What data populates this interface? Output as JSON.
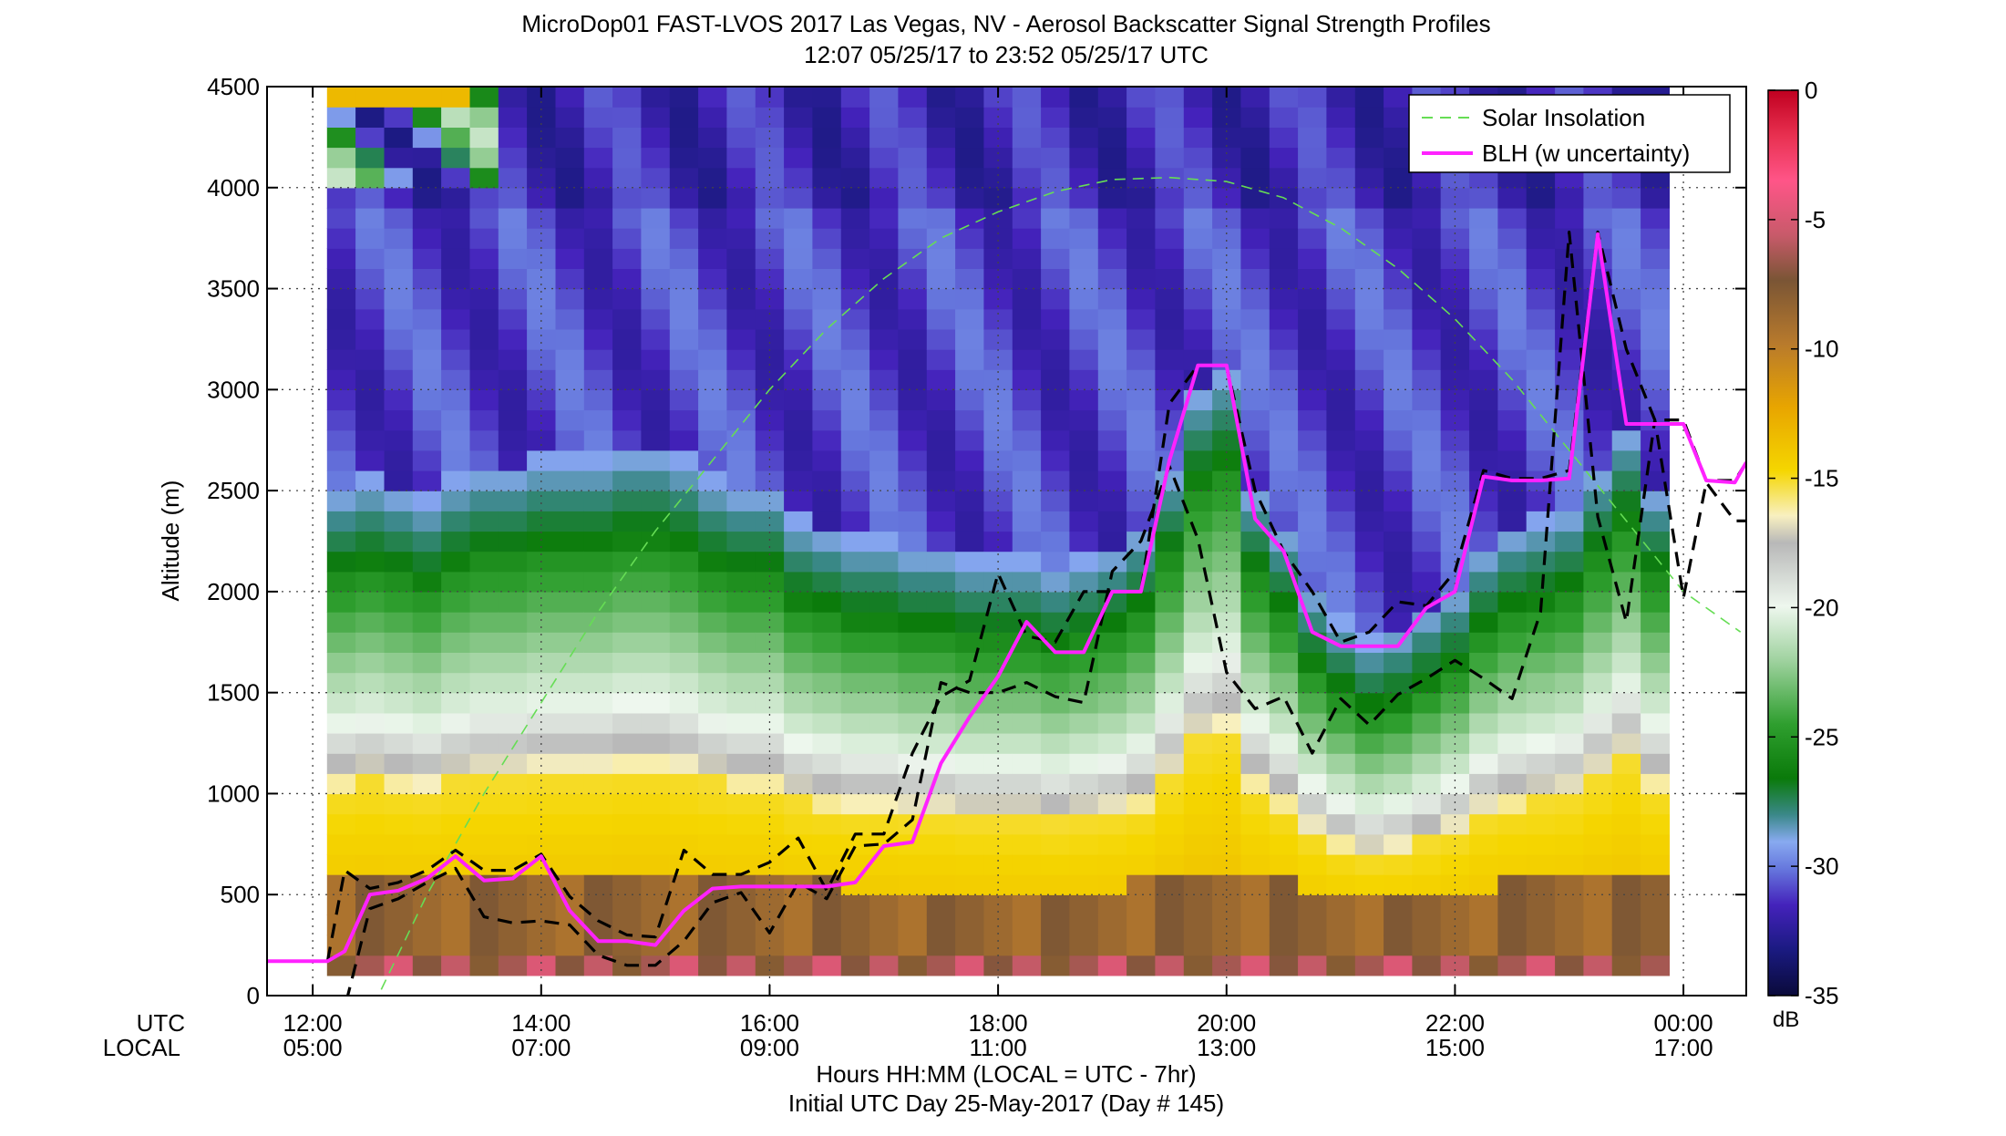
{
  "chart_data": {
    "type": "heatmap",
    "title": "MicroDop01 FAST-LVOS 2017 Las Vegas, NV - Aerosol Backscatter Signal Strength Profiles",
    "subtitle": "12:07 05/25/17 to 23:52 05/25/17  UTC",
    "ylabel": "Altitude (m)",
    "xlabel": "Hours HH:MM  (LOCAL = UTC - 7hr)",
    "footer": "Initial UTC Day 25-May-2017 (Day # 145)",
    "x_row_labels": [
      "UTC",
      "LOCAL"
    ],
    "xlim": [
      11.6,
      24.55
    ],
    "ylim": [
      0,
      4500
    ],
    "grid": true,
    "x_ticks": [
      {
        "value": 12,
        "utc": "12:00",
        "local": "05:00"
      },
      {
        "value": 14,
        "utc": "14:00",
        "local": "07:00"
      },
      {
        "value": 16,
        "utc": "16:00",
        "local": "09:00"
      },
      {
        "value": 18,
        "utc": "18:00",
        "local": "11:00"
      },
      {
        "value": 20,
        "utc": "20:00",
        "local": "13:00"
      },
      {
        "value": 22,
        "utc": "22:00",
        "local": "15:00"
      },
      {
        "value": 24,
        "utc": "00:00",
        "local": "17:00"
      }
    ],
    "y_ticks": [
      0,
      500,
      1000,
      1500,
      2000,
      2500,
      3000,
      3500,
      4000,
      4500
    ],
    "colorbar": {
      "label": "dB",
      "range": [
        -35,
        0
      ],
      "ticks": [
        "0",
        "-5",
        "-10",
        "-15",
        "-20",
        "-25",
        "-30",
        "-35"
      ],
      "tick_values": [
        0,
        -5,
        -10,
        -15,
        -20,
        -25,
        -30,
        -35
      ]
    },
    "legend": {
      "position": "top-right",
      "entries": [
        {
          "label": "Solar Insolation",
          "color": "#66dd55",
          "style": "dashed"
        },
        {
          "label": "BLH (w uncertainty)",
          "color": "#ff22ff",
          "style": "solid"
        }
      ]
    },
    "heatmap_columns": {
      "x_start": 12.13,
      "x_end": 24.0,
      "bin_hours": 0.25,
      "columns": [
        {
          "x": 12.25,
          "top_db": -31,
          "bl_top": 2300
        },
        {
          "x": 12.5,
          "top_db": -31,
          "bl_top": 2350
        },
        {
          "x": 12.75,
          "top_db": -31,
          "bl_top": 2300
        },
        {
          "x": 13.0,
          "top_db": -31,
          "bl_top": 2250
        },
        {
          "x": 13.25,
          "top_db": -31,
          "bl_top": 2350
        },
        {
          "x": 13.5,
          "top_db": -31,
          "bl_top": 2400
        },
        {
          "x": 13.75,
          "top_db": -31,
          "bl_top": 2400
        },
        {
          "x": 14.0,
          "top_db": -31,
          "bl_top": 2450
        },
        {
          "x": 14.25,
          "top_db": -31,
          "bl_top": 2450
        },
        {
          "x": 14.5,
          "top_db": -31,
          "bl_top": 2450
        },
        {
          "x": 14.75,
          "top_db": -31,
          "bl_top": 2500
        },
        {
          "x": 15.0,
          "top_db": -31,
          "bl_top": 2500
        },
        {
          "x": 15.25,
          "top_db": -31,
          "bl_top": 2450
        },
        {
          "x": 15.5,
          "top_db": -31,
          "bl_top": 2350
        },
        {
          "x": 15.75,
          "top_db": -31,
          "bl_top": 2300
        },
        {
          "x": 16.0,
          "top_db": -31,
          "bl_top": 2300
        },
        {
          "x": 16.25,
          "top_db": -31,
          "bl_top": 2150
        },
        {
          "x": 16.5,
          "top_db": -31,
          "bl_top": 2100
        },
        {
          "x": 16.75,
          "top_db": -31,
          "bl_top": 2050
        },
        {
          "x": 17.0,
          "top_db": -31,
          "bl_top": 2050
        },
        {
          "x": 17.25,
          "top_db": -31,
          "bl_top": 2000
        },
        {
          "x": 17.5,
          "top_db": -31,
          "bl_top": 2000
        },
        {
          "x": 17.75,
          "top_db": -31,
          "bl_top": 1950
        },
        {
          "x": 18.0,
          "top_db": -31,
          "bl_top": 1950
        },
        {
          "x": 18.25,
          "top_db": -31,
          "bl_top": 1950
        },
        {
          "x": 18.5,
          "top_db": -31,
          "bl_top": 1900
        },
        {
          "x": 18.75,
          "top_db": -31,
          "bl_top": 1950
        },
        {
          "x": 19.0,
          "top_db": -31,
          "bl_top": 2000
        },
        {
          "x": 19.25,
          "top_db": -31,
          "bl_top": 2100
        },
        {
          "x": 19.5,
          "top_db": -31,
          "bl_top": 2400
        },
        {
          "x": 19.75,
          "top_db": -31,
          "bl_top": 2800
        },
        {
          "x": 20.0,
          "top_db": -31,
          "bl_top": 2900
        },
        {
          "x": 20.25,
          "top_db": -31,
          "bl_top": 2300
        },
        {
          "x": 20.5,
          "top_db": -31,
          "bl_top": 2100
        },
        {
          "x": 20.75,
          "top_db": -31,
          "bl_top": 1800
        },
        {
          "x": 21.0,
          "top_db": -31,
          "bl_top": 1650
        },
        {
          "x": 21.25,
          "top_db": -31,
          "bl_top": 1550
        },
        {
          "x": 21.5,
          "top_db": -31,
          "bl_top": 1600
        },
        {
          "x": 21.75,
          "top_db": -31,
          "bl_top": 1700
        },
        {
          "x": 22.0,
          "top_db": -31,
          "bl_top": 1800
        },
        {
          "x": 22.25,
          "top_db": -31,
          "bl_top": 2000
        },
        {
          "x": 22.5,
          "top_db": -31,
          "bl_top": 2100
        },
        {
          "x": 22.75,
          "top_db": -31,
          "bl_top": 2150
        },
        {
          "x": 23.0,
          "top_db": -31,
          "bl_top": 2200
        },
        {
          "x": 23.25,
          "top_db": -31,
          "bl_top": 2400
        },
        {
          "x": 23.5,
          "top_db": -31,
          "bl_top": 2600
        },
        {
          "x": 23.75,
          "top_db": -31,
          "bl_top": 2300
        }
      ]
    },
    "series": [
      {
        "name": "BLH (w uncertainty)",
        "color": "#ff22ff",
        "x": [
          11.6,
          12.13,
          12.28,
          12.5,
          12.75,
          13.0,
          13.25,
          13.5,
          13.75,
          14.0,
          14.25,
          14.5,
          14.75,
          15.0,
          15.25,
          15.5,
          15.75,
          16.0,
          16.25,
          16.5,
          16.75,
          17.0,
          17.25,
          17.5,
          17.75,
          18.0,
          18.25,
          18.5,
          18.75,
          19.0,
          19.25,
          19.5,
          19.75,
          20.0,
          20.25,
          20.5,
          20.75,
          21.0,
          21.25,
          21.5,
          21.75,
          22.0,
          22.25,
          22.5,
          22.75,
          23.0,
          23.25,
          23.5,
          23.75,
          24.0,
          24.2,
          24.45,
          24.55
        ],
        "y": [
          170,
          170,
          220,
          500,
          520,
          580,
          690,
          570,
          580,
          690,
          420,
          270,
          270,
          250,
          420,
          530,
          540,
          540,
          540,
          540,
          560,
          740,
          760,
          1150,
          1380,
          1580,
          1850,
          1700,
          1700,
          2000,
          2000,
          2650,
          3120,
          3120,
          2360,
          2200,
          1800,
          1730,
          1730,
          1730,
          1920,
          2000,
          2570,
          2550,
          2550,
          2560,
          3770,
          2830,
          2830,
          2830,
          2550,
          2540,
          2640
        ]
      },
      {
        "name": "",
        "color": "#000000",
        "style": "dashed",
        "x": [
          12.13,
          12.28,
          12.5,
          12.75,
          13.0,
          13.25,
          13.5,
          13.75,
          14.0,
          14.25,
          14.5,
          14.75,
          15.0,
          15.25,
          15.5,
          15.75,
          16.0,
          16.25,
          16.5,
          16.75,
          17.0,
          17.25,
          17.5,
          17.75,
          18.0,
          18.25,
          18.5,
          18.75,
          19.0,
          19.25,
          19.5,
          19.75,
          20.0,
          20.25,
          20.5,
          20.75,
          21.0,
          21.25,
          21.5,
          21.75,
          22.0,
          22.25,
          22.5,
          22.75,
          23.0,
          23.25,
          23.5,
          23.75,
          24.0,
          24.2,
          24.45,
          24.55
        ],
        "y": [
          170,
          620,
          530,
          560,
          620,
          720,
          620,
          620,
          700,
          490,
          370,
          300,
          290,
          720,
          600,
          600,
          660,
          780,
          520,
          800,
          800,
          1200,
          1480,
          1560,
          2090,
          1780,
          1750,
          2000,
          2000,
          2000,
          2930,
          3120,
          3120,
          2500,
          2200,
          2000,
          1750,
          1800,
          1950,
          1930,
          2100,
          2600,
          2560,
          2560,
          2600,
          3780,
          3200,
          2850,
          2850,
          2550,
          2550,
          2640
        ]
      },
      {
        "name": "",
        "color": "#000000",
        "style": "dashed",
        "x": [
          12.13,
          12.28,
          12.5,
          12.75,
          13.0,
          13.25,
          13.5,
          13.75,
          14.0,
          14.25,
          14.5,
          14.75,
          15.0,
          15.25,
          15.5,
          15.75,
          16.0,
          16.25,
          16.5,
          16.75,
          17.0,
          17.25,
          17.5,
          17.75,
          18.0,
          18.25,
          18.5,
          18.75,
          19.0,
          19.25,
          19.5,
          19.75,
          20.0,
          20.25,
          20.5,
          20.75,
          21.0,
          21.25,
          21.5,
          21.75,
          22.0,
          22.25,
          22.5,
          22.75,
          23.0,
          23.25,
          23.5,
          23.75,
          24.0,
          24.2,
          24.45,
          24.55
        ],
        "y": [
          -60,
          -60,
          430,
          480,
          560,
          630,
          390,
          360,
          370,
          350,
          200,
          150,
          150,
          270,
          460,
          510,
          310,
          560,
          480,
          740,
          750,
          870,
          1550,
          1500,
          1500,
          1550,
          1480,
          1450,
          2100,
          2250,
          2620,
          2260,
          1600,
          1420,
          1480,
          1200,
          1470,
          1340,
          1490,
          1570,
          1660,
          1570,
          1470,
          1900,
          3780,
          2370,
          1850,
          2850,
          1970,
          2540,
          2350,
          2350
        ]
      },
      {
        "name": "Solar Insolation",
        "color": "#66dd55",
        "style": "dashed",
        "x": [
          12.6,
          13.0,
          13.5,
          14.0,
          14.5,
          15.0,
          15.5,
          16.0,
          16.5,
          17.0,
          17.5,
          18.0,
          18.5,
          19.0,
          19.5,
          20.0,
          20.5,
          21.0,
          21.5,
          22.0,
          22.5,
          23.0,
          23.5,
          24.0,
          24.5
        ],
        "y": [
          30,
          500,
          1000,
          1450,
          1900,
          2300,
          2650,
          3000,
          3300,
          3550,
          3750,
          3880,
          3980,
          4040,
          4050,
          4030,
          3950,
          3800,
          3600,
          3350,
          3050,
          2700,
          2350,
          2000,
          1800
        ]
      }
    ]
  }
}
